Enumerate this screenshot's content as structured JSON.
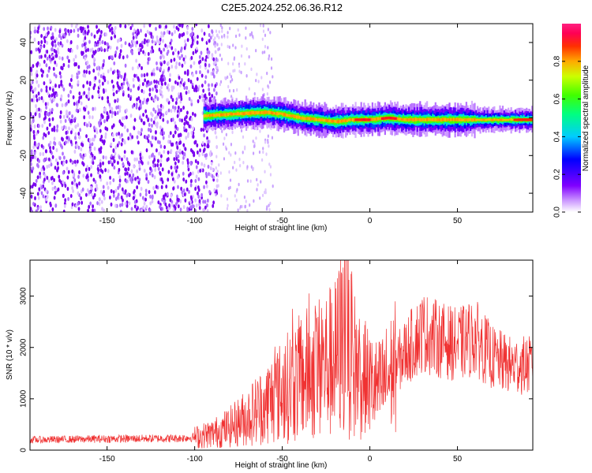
{
  "title": "C2E5.2024.252.06.36.R12",
  "colors": {
    "snr_line": "#f03232",
    "frame": "#000000"
  },
  "chart_data": [
    {
      "type": "heatmap",
      "name": "spectrogram",
      "xlabel": "Height of straight line (km)",
      "ylabel": "Frequency (Hz)",
      "xlim": [
        -194,
        93
      ],
      "ylim": [
        -50,
        50
      ],
      "x_ticks": [
        -150,
        -100,
        -50,
        0,
        50
      ],
      "y_ticks": [
        -40,
        -20,
        0,
        20,
        40
      ],
      "colorbar": {
        "label": "Normalized spectral amplitude",
        "range": [
          0,
          1
        ],
        "ticks": [
          "0.0",
          "0.2",
          "0.4",
          "0.6",
          "0.8"
        ],
        "colormap": "gist_rainbow (white→violet→blue→cyan→green→yellow→orange→red)"
      },
      "description_points": {
        "noise_region_x": [
          -194,
          -90
        ],
        "noise_amplitude": 0.1,
        "signal_start_x": -95,
        "signal_center_freq": [
          [
            -95,
            1
          ],
          [
            -80,
            2
          ],
          [
            -60,
            3
          ],
          [
            -50,
            2
          ],
          [
            -40,
            0
          ],
          [
            -30,
            -1
          ],
          [
            -20,
            -2
          ],
          [
            -10,
            -1
          ],
          [
            0,
            -1
          ],
          [
            10,
            0
          ],
          [
            20,
            -1
          ],
          [
            40,
            -1
          ],
          [
            60,
            -1
          ],
          [
            80,
            -1
          ],
          [
            93,
            -1
          ]
        ],
        "peak_amplitude_x": [
          -5,
          10,
          88
        ]
      }
    },
    {
      "type": "line",
      "name": "snr",
      "xlabel": "Height of straight line (km)",
      "ylabel": "SNR (10 * v/v)",
      "xlim": [
        -194,
        93
      ],
      "ylim": [
        0,
        3700
      ],
      "x_ticks": [
        -150,
        -100,
        -50,
        0,
        50
      ],
      "y_ticks": [
        0,
        1000,
        2000,
        3000
      ],
      "series": [
        {
          "x": [
            -194,
            -150,
            -110,
            -100,
            -90,
            -80,
            -70,
            -60,
            -50,
            -40,
            -30,
            -20,
            -14,
            -10,
            0,
            5,
            10,
            20,
            30,
            40,
            50,
            60,
            70,
            80,
            93
          ],
          "y": [
            200,
            220,
            230,
            250,
            320,
            450,
            650,
            900,
            1150,
            1400,
            1600,
            1750,
            2300,
            1700,
            1300,
            1200,
            1400,
            1900,
            2300,
            2150,
            2050,
            2200,
            1800,
            1650,
            1650
          ]
        }
      ]
    }
  ]
}
